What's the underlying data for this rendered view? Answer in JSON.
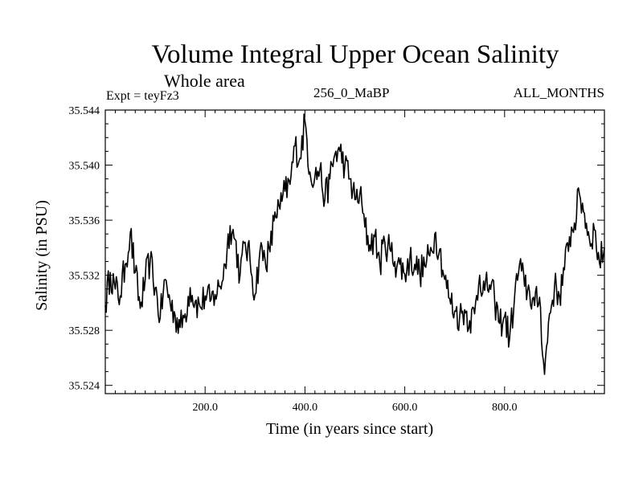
{
  "chart_data": {
    "type": "line",
    "title": "Volume Integral Upper Ocean Salinity",
    "subtitle": "Whole area",
    "expt_label": "Expt = teyFz3",
    "period_label": "256_0_MaBP",
    "months_label": "ALL_MONTHS",
    "xlabel": "Time (in years since start)",
    "ylabel": "Salinity (in PSU)",
    "xlim": [
      0,
      1000
    ],
    "ylim": [
      35.5234,
      35.544
    ],
    "xticks": [
      200,
      400,
      600,
      800
    ],
    "xtick_labels": [
      "200.0",
      "400.0",
      "600.0",
      "800.0"
    ],
    "yticks": [
      35.524,
      35.528,
      35.532,
      35.536,
      35.54,
      35.544
    ],
    "ytick_labels": [
      "35.524",
      "35.528",
      "35.532",
      "35.536",
      "35.540",
      "35.544"
    ],
    "series": [
      {
        "name": "Salinity",
        "color": "#000000",
        "x": [
          0,
          10,
          20,
          30,
          40,
          50,
          60,
          70,
          80,
          90,
          100,
          110,
          120,
          130,
          140,
          150,
          160,
          170,
          180,
          190,
          200,
          210,
          220,
          230,
          240,
          250,
          260,
          270,
          280,
          290,
          300,
          310,
          320,
          330,
          340,
          350,
          360,
          370,
          380,
          390,
          400,
          410,
          420,
          430,
          440,
          450,
          460,
          470,
          480,
          490,
          500,
          510,
          520,
          530,
          540,
          550,
          560,
          570,
          580,
          590,
          600,
          610,
          620,
          630,
          640,
          650,
          660,
          670,
          680,
          690,
          700,
          710,
          720,
          730,
          740,
          750,
          760,
          770,
          780,
          790,
          800,
          810,
          820,
          830,
          840,
          850,
          860,
          870,
          880,
          890,
          900,
          910,
          920,
          930,
          940,
          950,
          960,
          970,
          980,
          990,
          1000
        ],
        "values": [
          35.5298,
          35.5322,
          35.531,
          35.5305,
          35.5328,
          35.5351,
          35.5322,
          35.5296,
          35.5317,
          35.5331,
          35.5311,
          35.5289,
          35.5317,
          35.53,
          35.5291,
          35.5282,
          35.5292,
          35.5311,
          35.5301,
          35.5297,
          35.5305,
          35.5301,
          35.5306,
          35.5312,
          35.5328,
          35.5356,
          35.5346,
          35.532,
          35.5344,
          35.5331,
          35.5306,
          35.5338,
          35.5332,
          35.5337,
          35.5366,
          35.5368,
          35.5381,
          35.5386,
          35.5414,
          35.5405,
          35.5432,
          35.5395,
          35.5392,
          35.5397,
          35.5375,
          35.539,
          35.5408,
          35.541,
          35.54,
          35.539,
          35.5375,
          35.5379,
          35.5355,
          35.5342,
          35.5348,
          35.5328,
          35.5344,
          35.5339,
          35.533,
          35.5328,
          35.5321,
          35.5332,
          35.5328,
          35.5322,
          35.5327,
          35.5334,
          35.535,
          35.5339,
          35.5317,
          35.5303,
          35.5294,
          35.529,
          35.5295,
          35.5287,
          35.5292,
          35.532,
          35.5309,
          35.5313,
          35.5302,
          35.5285,
          35.529,
          35.5274,
          35.5304,
          35.5328,
          35.5312,
          35.5308,
          35.5298,
          35.5304,
          35.5248,
          35.5292,
          35.5312,
          35.5305,
          35.5324,
          35.5348,
          35.5358,
          35.5379,
          35.5365,
          35.5346,
          35.5353,
          35.5329,
          35.534
        ]
      }
    ]
  }
}
